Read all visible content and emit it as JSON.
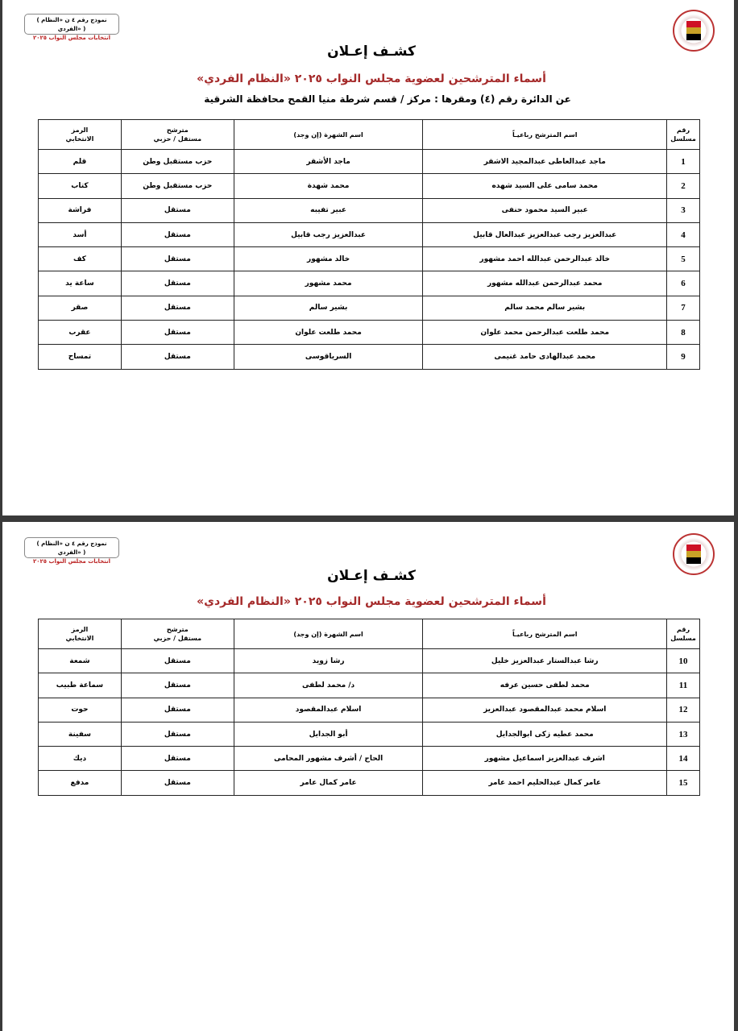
{
  "form_box": {
    "line1": "( نموذج رقم ٤ ن «النظام الفردي» )",
    "line2": "انتخابات مجلس النواب ٢٠٢٥"
  },
  "logo": {
    "name": "national-elections-authority-emblem",
    "colors": [
      "#ce1126",
      "#ffffff",
      "#000000"
    ]
  },
  "title": "كشـف إعـلان",
  "subtitle": "أسماء المترشحين لعضوية مجلس النواب ٢٠٢٥ «النظام الفردي»",
  "district_line": "عن الدائرة رقم (٤) ومقرها : مركز / قسم شرطة منيا القمح محافظة الشرقية",
  "columns": [
    "رقم مسلسل",
    "اسم المترشح رباعيـاً",
    "اسم الشهرة (إن وجد)",
    "مترشح مستقل / حزبي",
    "الرمز الانتخابي"
  ],
  "columns_lines": {
    "c0a": "رقم",
    "c0b": "مسلسل",
    "c3a": "مترشح",
    "c3b": "مستقل / حزبي",
    "c4a": "الرمز",
    "c4b": "الانتخابي"
  },
  "page1_rows": [
    [
      "1",
      "ماجد عبدالعاطى عبدالمجيد الاشقر",
      "ماجد الأشقر",
      "حزب مستقبل وطن",
      "قلم"
    ],
    [
      "2",
      "محمد سامى على السيد شهده",
      "محمد شهدة",
      "حزب مستقبل وطن",
      "كتاب"
    ],
    [
      "3",
      "عبير السيد محمود حنفى",
      "عبير تفيبه",
      "مستقل",
      "فراشة"
    ],
    [
      "4",
      "عبدالعزيز رجب عبدالعزيز عبدالعال قابيل",
      "عبدالعزيز رجب قابيل",
      "مستقل",
      "أسد"
    ],
    [
      "5",
      "خالد عبدالرحمن عبدالله احمد مشهور",
      "خالد مشهور",
      "مستقل",
      "كف"
    ],
    [
      "6",
      "محمد عبدالرحمن عبدالله مشهور",
      "محمد مشهور",
      "مستقل",
      "ساعة يد"
    ],
    [
      "7",
      "بشير سالم محمد سالم",
      "بشير سالم",
      "مستقل",
      "صقر"
    ],
    [
      "8",
      "محمد طلعت عبدالرحمن محمد علوان",
      "محمد طلعت علوان",
      "مستقل",
      "عقرب"
    ],
    [
      "9",
      "محمد عبدالهادى حامد غنيمى",
      "السرياقوسى",
      "مستقل",
      "تمساح"
    ]
  ],
  "page2_rows": [
    [
      "10",
      "رشا عبدالستار عبدالعزيز خليل",
      "رشا زويد",
      "مستقل",
      "شمعة"
    ],
    [
      "11",
      "محمد لطفى حسين عرفه",
      "د/ محمد لطفى",
      "مستقل",
      "سماعة طبيب"
    ],
    [
      "12",
      "اسلام محمد عبدالمقصود عبدالعزيز",
      "اسلام عبدالمقصود",
      "مستقل",
      "حوت"
    ],
    [
      "13",
      "محمد عطيه زكى ابوالجدايل",
      "أبو الجدايل",
      "مستقل",
      "سفينة"
    ],
    [
      "14",
      "اشرف عبدالعزيز اسماعيل مشهور",
      "الحاج / أشرف مشهور المحامى",
      "مستقل",
      "ديك"
    ],
    [
      "15",
      "عامر كمال عبدالحليم احمد عامر",
      "عامر كمال عامر",
      "مستقل",
      "مدفع"
    ]
  ]
}
